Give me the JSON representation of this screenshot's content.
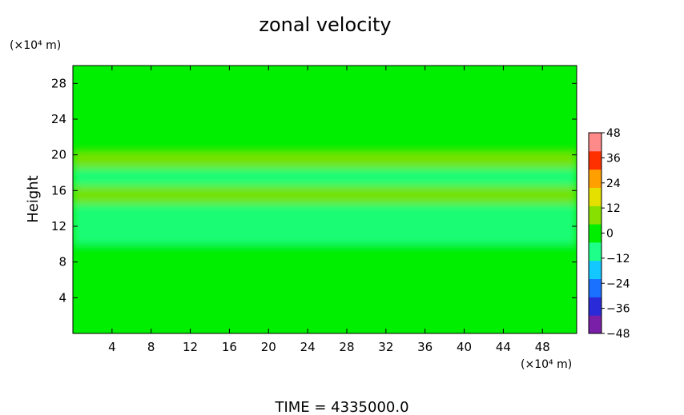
{
  "chart_data": {
    "type": "heatmap",
    "title": "zonal velocity",
    "subtitle": "TIME  =  4335000.0",
    "ylabel": "Height",
    "y_unit_label": "(×10⁴ m)",
    "x_unit_label": "(×10⁴ m)",
    "xlim": [
      0,
      51.5
    ],
    "ylim": [
      0,
      30
    ],
    "x_ticks": [
      4,
      8,
      12,
      16,
      20,
      24,
      28,
      32,
      36,
      40,
      44,
      48
    ],
    "y_ticks": [
      4,
      8,
      12,
      16,
      20,
      24,
      28
    ],
    "colorbar": {
      "ticks": [
        48,
        36,
        24,
        12,
        0,
        -12,
        -24,
        -36,
        -48
      ],
      "tick_labels": [
        "48",
        "36",
        "24",
        "12",
        "0",
        "−12",
        "−24",
        "−36",
        "−48"
      ],
      "range": [
        -48,
        48
      ],
      "colors": [
        "#7a1fa8",
        "#2a2ad8",
        "#1a70ff",
        "#12c8ff",
        "#1eff8a",
        "#00ee00",
        "#88e000",
        "#e6e000",
        "#ffa000",
        "#ff3000",
        "#ff8a8a"
      ]
    },
    "background_color": "#00ee00",
    "bands": [
      {
        "x": [
          0,
          51.5
        ],
        "y": [
          18.5,
          20.5
        ],
        "value": 6
      },
      {
        "x": [
          0,
          51.5
        ],
        "y": [
          16.5,
          18.5
        ],
        "value": -8
      },
      {
        "x": [
          0,
          51.5
        ],
        "y": [
          14.5,
          16.5
        ],
        "value": 5
      },
      {
        "x": [
          0,
          51.5
        ],
        "y": [
          12,
          14.5
        ],
        "value": -10
      },
      {
        "x": [
          0,
          51.5
        ],
        "y": [
          10,
          12
        ],
        "value": -14
      },
      {
        "x": [
          0,
          51.5
        ],
        "y": [
          7,
          10
        ],
        "value": 3
      },
      {
        "x": [
          0,
          51.5
        ],
        "y": [
          0,
          7
        ],
        "value": 4
      }
    ]
  }
}
